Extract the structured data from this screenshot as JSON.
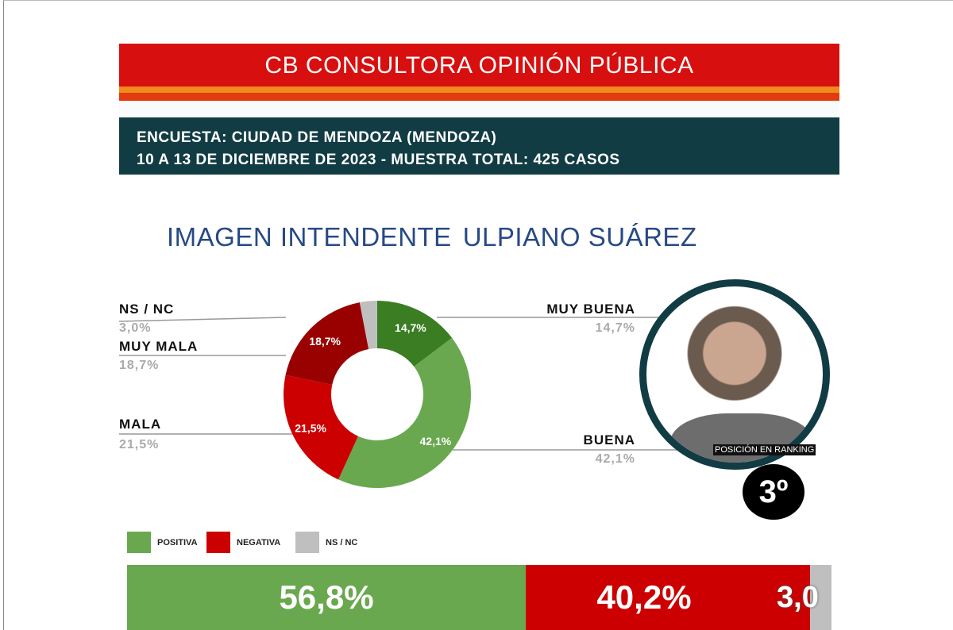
{
  "header": {
    "title": "CB CONSULTORA OPINIÓN PÚBLICA"
  },
  "info": {
    "line1": "ENCUESTA: CIUDAD DE MENDOZA (MENDOZA)",
    "line2": "10 A 13 DE DICIEMBRE DE 2023 - MUESTRA TOTAL: 425 CASOS"
  },
  "title": {
    "part1": "IMAGEN INTENDENTE",
    "part2": "ULPIANO SUÁREZ"
  },
  "chart_data": {
    "type": "pie",
    "title": "IMAGEN INTENDENTE ULPIANO SUÁREZ",
    "slices": [
      {
        "label": "MUY BUENA",
        "value": 14.7,
        "text": "14,7%",
        "color": "#3b7d23"
      },
      {
        "label": "BUENA",
        "value": 42.1,
        "text": "42,1%",
        "color": "#6aa84f"
      },
      {
        "label": "MALA",
        "value": 21.5,
        "text": "21,5%",
        "color": "#cc0000"
      },
      {
        "label": "MUY MALA",
        "value": 18.7,
        "text": "18,7%",
        "color": "#990000"
      },
      {
        "label": "NS / NC",
        "value": 3.0,
        "text": "3,0%",
        "color": "#bfbfbf"
      }
    ],
    "legend": [
      {
        "label": "POSITIVA",
        "color": "#6aa84f"
      },
      {
        "label": "NEGATIVA",
        "color": "#cc0000"
      },
      {
        "label": "NS / NC",
        "color": "#bfbfbf"
      }
    ],
    "summary": [
      {
        "label": "POSITIVA",
        "value": 56.8,
        "text": "56,8%",
        "color": "#6aa84f"
      },
      {
        "label": "NEGATIVA",
        "value": 40.2,
        "text": "40,2%",
        "color": "#cc0000"
      },
      {
        "label": "NS / NC",
        "value": 3.0,
        "text": "3,0",
        "color": "#bfbfbf"
      }
    ]
  },
  "ranking": {
    "label": "POSICIÓN EN RANKING",
    "value": "3º"
  }
}
